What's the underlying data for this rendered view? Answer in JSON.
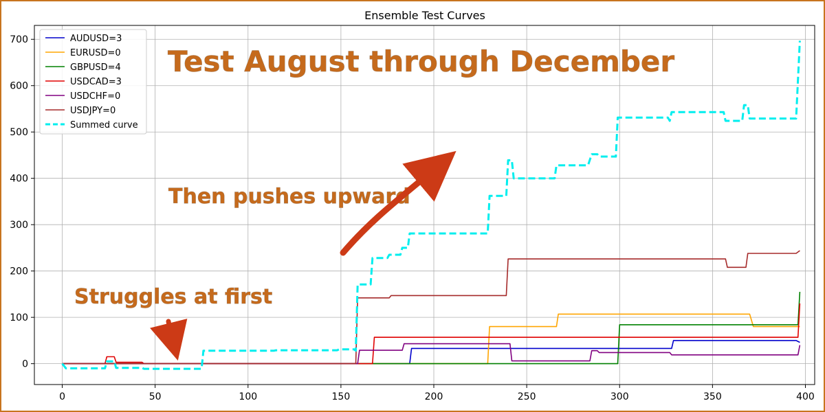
{
  "chart_data": {
    "type": "line",
    "title": "Ensemble Test Curves",
    "xlabel": "",
    "ylabel": "",
    "xlim": [
      -15,
      405
    ],
    "ylim": [
      -45,
      730
    ],
    "xticks": [
      0,
      50,
      100,
      150,
      200,
      250,
      300,
      350,
      400
    ],
    "yticks": [
      0,
      100,
      200,
      300,
      400,
      500,
      600,
      700
    ],
    "grid": true,
    "legend_position": "top-left",
    "series": [
      {
        "name": "AUDUSD=3",
        "color": "#0000cc",
        "dash": "solid",
        "points": [
          [
            0,
            0
          ],
          [
            187,
            0
          ],
          [
            188,
            33
          ],
          [
            328,
            33
          ],
          [
            329,
            50
          ],
          [
            395,
            50
          ],
          [
            397,
            46
          ]
        ]
      },
      {
        "name": "EURUSD=0",
        "color": "#ffa500",
        "dash": "solid",
        "points": [
          [
            0,
            0
          ],
          [
            229,
            0
          ],
          [
            230,
            80
          ],
          [
            266,
            80
          ],
          [
            267,
            107
          ],
          [
            370,
            107
          ],
          [
            372,
            80
          ],
          [
            397,
            80
          ]
        ]
      },
      {
        "name": "GBPUSD=4",
        "color": "#008000",
        "dash": "solid",
        "points": [
          [
            0,
            0
          ],
          [
            299,
            0
          ],
          [
            300,
            84
          ],
          [
            396,
            84
          ],
          [
            397,
            155
          ]
        ]
      },
      {
        "name": "USDCAD=3",
        "color": "#e00000",
        "dash": "solid",
        "points": [
          [
            0,
            0
          ],
          [
            23,
            0
          ],
          [
            24,
            15
          ],
          [
            28,
            15
          ],
          [
            29,
            3
          ],
          [
            43,
            3
          ],
          [
            44,
            0
          ],
          [
            167,
            0
          ],
          [
            168,
            57
          ],
          [
            396,
            57
          ],
          [
            397,
            130
          ]
        ]
      },
      {
        "name": "USDCHF=0",
        "color": "#800080",
        "dash": "solid",
        "points": [
          [
            0,
            0
          ],
          [
            159,
            0
          ],
          [
            160,
            29
          ],
          [
            183,
            29
          ],
          [
            184,
            43
          ],
          [
            241,
            43
          ],
          [
            242,
            6
          ],
          [
            284,
            6
          ],
          [
            285,
            28
          ],
          [
            288,
            28
          ],
          [
            289,
            24
          ],
          [
            327,
            24
          ],
          [
            328,
            19
          ],
          [
            396,
            19
          ],
          [
            397,
            40
          ]
        ]
      },
      {
        "name": "USDJPY=0",
        "color": "#a52a2a",
        "dash": "solid",
        "points": [
          [
            0,
            0
          ],
          [
            158,
            0
          ],
          [
            159,
            142
          ],
          [
            176,
            142
          ],
          [
            177,
            147
          ],
          [
            239,
            147
          ],
          [
            240,
            226
          ],
          [
            357,
            226
          ],
          [
            358,
            208
          ],
          [
            368,
            208
          ],
          [
            369,
            238
          ],
          [
            395,
            238
          ],
          [
            397,
            244
          ]
        ]
      },
      {
        "name": "Summed curve",
        "color": "#00eeee",
        "dash": "dashed",
        "points": [
          [
            0,
            0
          ],
          [
            2,
            -10
          ],
          [
            23,
            -10
          ],
          [
            24,
            5
          ],
          [
            28,
            5
          ],
          [
            29,
            -9
          ],
          [
            43,
            -9
          ],
          [
            44,
            -11
          ],
          [
            75,
            -11
          ],
          [
            76,
            28
          ],
          [
            114,
            28
          ],
          [
            115,
            29
          ],
          [
            148,
            29
          ],
          [
            149,
            31
          ],
          [
            157,
            31
          ],
          [
            158,
            28
          ],
          [
            159,
            171
          ],
          [
            166,
            171
          ],
          [
            167,
            228
          ],
          [
            175,
            228
          ],
          [
            176,
            235
          ],
          [
            182,
            235
          ],
          [
            183,
            250
          ],
          [
            186,
            250
          ],
          [
            187,
            281
          ],
          [
            229,
            281
          ],
          [
            230,
            362
          ],
          [
            239,
            362
          ],
          [
            240,
            439
          ],
          [
            242,
            439
          ],
          [
            243,
            400
          ],
          [
            265,
            400
          ],
          [
            266,
            428
          ],
          [
            283,
            428
          ],
          [
            285,
            452
          ],
          [
            288,
            452
          ],
          [
            289,
            447
          ],
          [
            298,
            447
          ],
          [
            299,
            531
          ],
          [
            326,
            531
          ],
          [
            327,
            524
          ],
          [
            328,
            543
          ],
          [
            356,
            543
          ],
          [
            357,
            524
          ],
          [
            366,
            524
          ],
          [
            367,
            558
          ],
          [
            369,
            558
          ],
          [
            370,
            529
          ],
          [
            393,
            529
          ],
          [
            395,
            529
          ],
          [
            397,
            697
          ]
        ]
      }
    ],
    "annotations": [
      {
        "text": "Test August through December"
      },
      {
        "text": "Then pushes upward"
      },
      {
        "text": "Struggles at first"
      }
    ]
  }
}
